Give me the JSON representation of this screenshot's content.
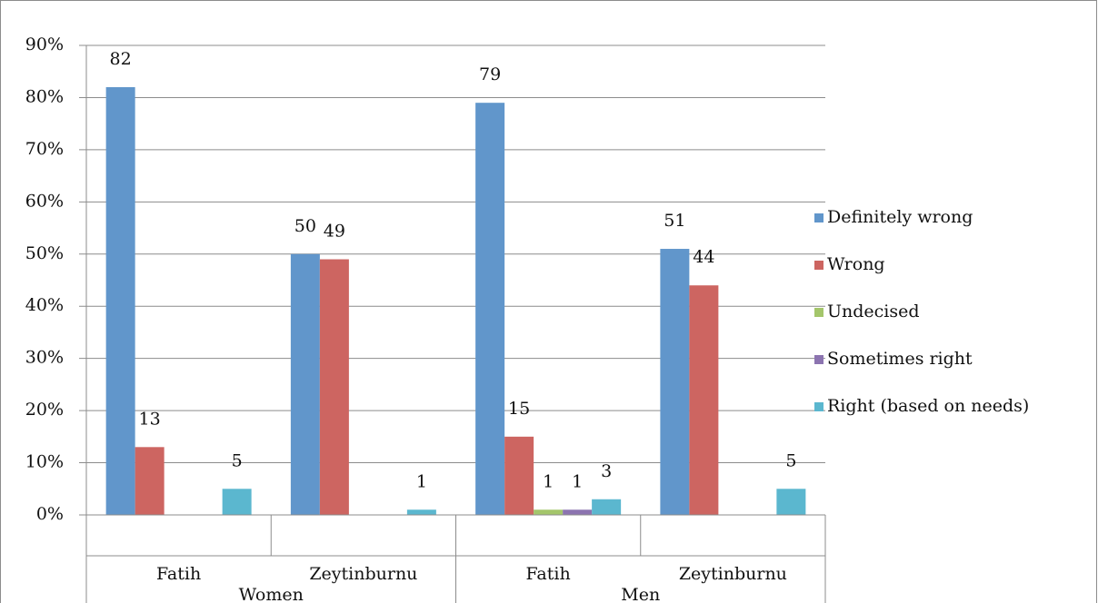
{
  "chart_data": {
    "type": "bar",
    "categories": [
      "Fatih",
      "Zeytinburnu",
      "Fatih",
      "Zeytinburnu"
    ],
    "category_groups": [
      "Women",
      "Men"
    ],
    "series": [
      {
        "name": "Definitely wrong",
        "color": "#6196cb",
        "values": [
          82,
          50,
          79,
          51
        ]
      },
      {
        "name": "Wrong",
        "color": "#cd6561",
        "values": [
          13,
          49,
          15,
          44
        ]
      },
      {
        "name": "Undecised",
        "color": "#a4c66b",
        "values": [
          null,
          null,
          1,
          null
        ]
      },
      {
        "name": "Sometimes right",
        "color": "#8c74b0",
        "values": [
          null,
          null,
          1,
          null
        ]
      },
      {
        "name": "Right (based on needs)",
        "color": "#5bb7cf",
        "values": [
          5,
          1,
          3,
          5
        ]
      }
    ],
    "ylim": [
      0,
      90
    ],
    "yticks": [
      {
        "value": 0,
        "label": "0%"
      },
      {
        "value": 10,
        "label": "10%"
      },
      {
        "value": 20,
        "label": "20%"
      },
      {
        "value": 30,
        "label": "30%"
      },
      {
        "value": 40,
        "label": "40%"
      },
      {
        "value": 50,
        "label": "50%"
      },
      {
        "value": 60,
        "label": "60%"
      },
      {
        "value": 70,
        "label": "70%"
      },
      {
        "value": 80,
        "label": "80%"
      },
      {
        "value": 90,
        "label": "90%"
      }
    ],
    "grid": true,
    "legend": "right"
  }
}
